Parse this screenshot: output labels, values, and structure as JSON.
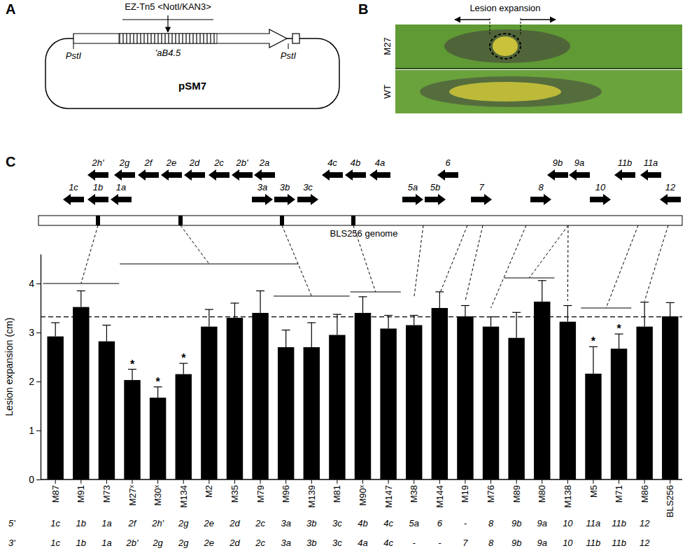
{
  "panel_a": {
    "label": "A",
    "transposon": "EZ-Tn5 <NotI/KAN3>",
    "gene": "'aB4.5",
    "sites": [
      "PstI",
      "PstI"
    ],
    "plasmid": "pSM7"
  },
  "panel_b": {
    "label": "B",
    "annotation": "Lesion expansion",
    "rows": [
      "M27",
      "WT"
    ]
  },
  "gene_map": {
    "genome": "BLS256 genome",
    "genes": [
      {
        "label": "2h'",
        "direction": "left"
      },
      {
        "label": "2g",
        "direction": "left"
      },
      {
        "label": "2f",
        "direction": "left"
      },
      {
        "label": "2e",
        "direction": "left"
      },
      {
        "label": "2d",
        "direction": "left"
      },
      {
        "label": "2c",
        "direction": "left"
      },
      {
        "label": "2b'",
        "direction": "left"
      },
      {
        "label": "2a",
        "direction": "left"
      },
      {
        "label": "4c",
        "direction": "left"
      },
      {
        "label": "4b",
        "direction": "left"
      },
      {
        "label": "4a",
        "direction": "left"
      },
      {
        "label": "6",
        "direction": "left"
      },
      {
        "label": "9b",
        "direction": "left"
      },
      {
        "label": "9a",
        "direction": "left"
      },
      {
        "label": "11b",
        "direction": "left"
      },
      {
        "label": "11a",
        "direction": "left"
      },
      {
        "label": "1c",
        "direction": "left"
      },
      {
        "label": "1b",
        "direction": "left"
      },
      {
        "label": "1a",
        "direction": "left"
      },
      {
        "label": "3a",
        "direction": "right"
      },
      {
        "label": "3b",
        "direction": "right"
      },
      {
        "label": "3c",
        "direction": "right"
      },
      {
        "label": "5a",
        "direction": "right"
      },
      {
        "label": "5b",
        "direction": "right"
      },
      {
        "label": "7",
        "direction": "right"
      },
      {
        "label": "8",
        "direction": "right"
      },
      {
        "label": "10",
        "direction": "right"
      },
      {
        "label": "12",
        "direction": "left"
      }
    ]
  },
  "chart_data": {
    "type": "bar",
    "panel_label": "C",
    "y_label": "Lesion expansion (cm)",
    "categories": [
      "M87",
      "M91",
      "M73",
      "M27ˣ",
      "M30ˣ",
      "M134",
      "M2",
      "M35",
      "M79",
      "M96",
      "M139",
      "M81",
      "M90ˣ",
      "M147",
      "M38",
      "M144",
      "M19",
      "M76",
      "M89",
      "M80",
      "M138",
      "M5",
      "M71",
      "M86",
      "BLS256"
    ],
    "values": [
      2.92,
      3.52,
      2.82,
      2.03,
      1.67,
      2.15,
      3.12,
      3.3,
      3.4,
      2.7,
      2.7,
      2.95,
      3.4,
      3.08,
      3.15,
      3.5,
      3.33,
      3.12,
      2.89,
      3.63,
      3.22,
      2.16,
      2.67,
      3.12,
      3.33
    ],
    "errors": [
      0.28,
      0.33,
      0.33,
      0.22,
      0.22,
      0.22,
      0.35,
      0.3,
      0.45,
      0.35,
      0.5,
      0.42,
      0.33,
      0.27,
      0.2,
      0.33,
      0.22,
      0.2,
      0.52,
      0.43,
      0.33,
      0.55,
      0.3,
      0.5,
      0.28
    ],
    "significant": [
      false,
      false,
      false,
      true,
      true,
      true,
      false,
      false,
      false,
      false,
      false,
      false,
      false,
      false,
      false,
      false,
      false,
      false,
      false,
      false,
      false,
      true,
      true,
      false,
      false
    ],
    "significance_label": "*",
    "reference_line": 3.32,
    "color": "#000000",
    "ylim": [
      0,
      4.6
    ],
    "yticks": [
      0,
      1,
      2,
      3,
      4
    ],
    "insertion_labels": [
      "5'",
      "3'"
    ],
    "insertion_5prime": [
      "1c",
      "1b",
      "1a",
      "2f",
      "2h'",
      "2g",
      "2e",
      "2d",
      "2c",
      "3a",
      "3b",
      "3c",
      "4b",
      "4c",
      "5a",
      "6",
      "-",
      "8",
      "9b",
      "9a",
      "10",
      "11a",
      "11b",
      "12",
      null
    ],
    "insertion_3prime": [
      "1c",
      "1b",
      "1a",
      "2b'",
      "2g",
      "2g",
      "2e",
      "2d",
      "2c",
      "3a",
      "3b",
      "3c",
      "4a",
      "4c",
      "-",
      "-",
      "7",
      "8",
      "9b",
      "9a",
      "10",
      "11b",
      "11b",
      "12",
      null
    ]
  }
}
